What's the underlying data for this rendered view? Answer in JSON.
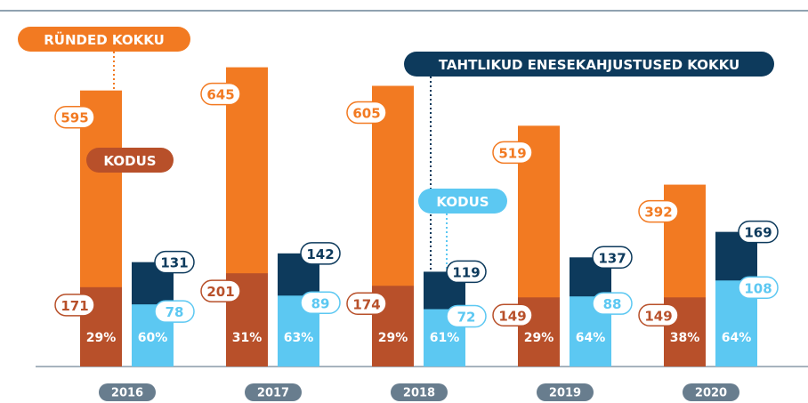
{
  "chart_data": {
    "type": "bar",
    "categories": [
      "2016",
      "2017",
      "2018",
      "2019",
      "2020"
    ],
    "ylim": [
      0,
      790
    ],
    "y2lim": [
      0,
      460
    ],
    "series": [
      {
        "name": "RÜNDED KOKKU",
        "color": "#f27a22",
        "values": [
          595,
          645,
          605,
          519,
          392
        ]
      },
      {
        "name": "KODUS",
        "color": "#b8502a",
        "values": [
          171,
          201,
          174,
          149,
          149
        ],
        "shares": [
          29,
          31,
          29,
          29,
          38
        ],
        "share_labels": [
          "29%",
          "31%",
          "29%",
          "29%",
          "38%"
        ]
      },
      {
        "name": "TAHTLIKUD ENESEKAHJUSTUSED KOKKU",
        "color": "#0d3a5c",
        "axis": "y2",
        "values": [
          131,
          142,
          119,
          137,
          169
        ]
      },
      {
        "name": "KODUS",
        "color": "#5cc8f2",
        "axis": "y2",
        "values": [
          78,
          89,
          72,
          88,
          108
        ],
        "shares": [
          60,
          63,
          61,
          64,
          64
        ],
        "share_labels": [
          "60%",
          "63%",
          "61%",
          "64%",
          "64%"
        ]
      }
    ]
  }
}
